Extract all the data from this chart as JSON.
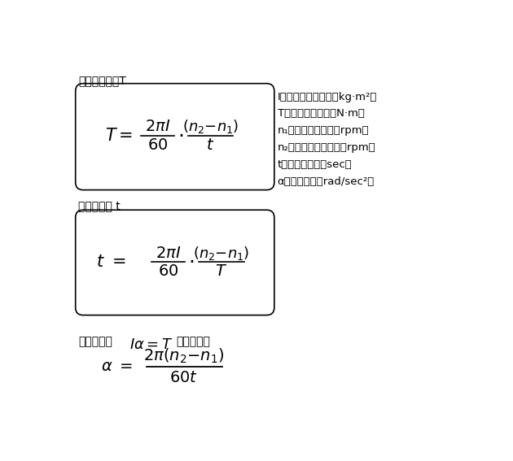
{
  "bg_color": "#ffffff",
  "fig_width": 6.3,
  "fig_height": 5.67,
  "dpi": 100,
  "label1": "加減速トルクT",
  "label2": "加減速時間 t",
  "legend_lines": [
    "I：慣性モーメント（kg·m²）",
    "T：加減速トルク（N·m）",
    "n₁：始めの回転数（rpm）",
    "n₂：終わりの回転数（rpm）",
    "t：加減速時間（sec）",
    "α：角加速度（rad/sec²）"
  ],
  "bottom_text1": "なぜなら，",
  "bottom_text2": "であるから"
}
